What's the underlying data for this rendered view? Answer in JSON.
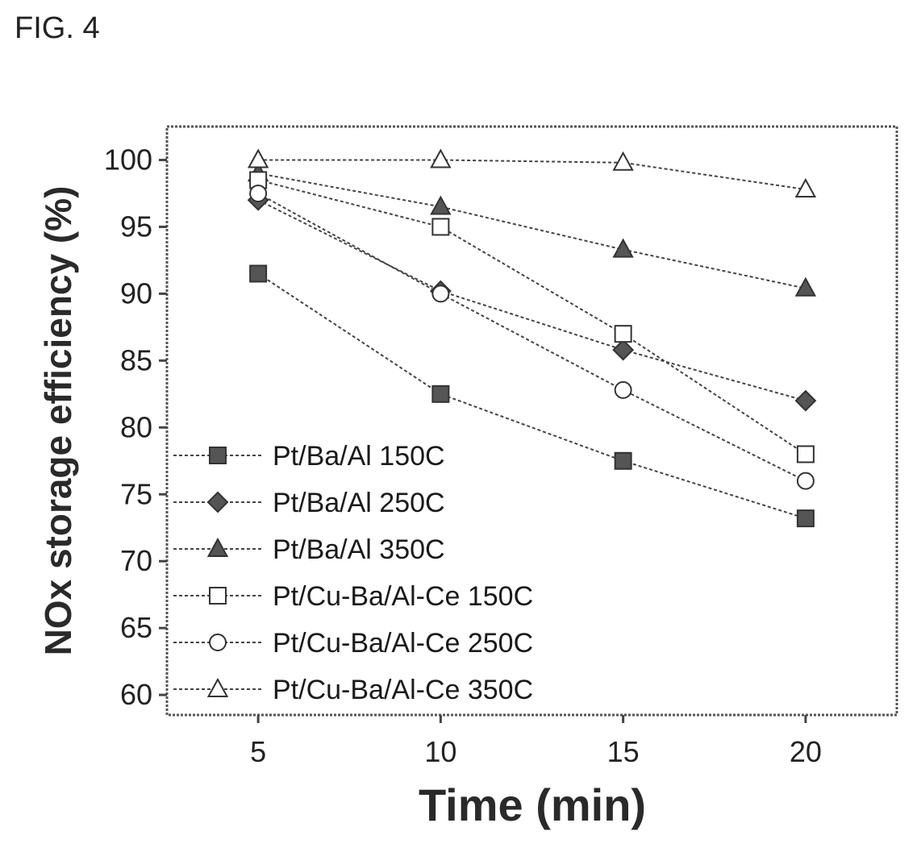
{
  "figure_label": "FIG. 4",
  "chart_data": {
    "type": "line",
    "x": [
      5,
      10,
      15,
      20
    ],
    "xlabel": "Time (min)",
    "ylabel": "NOx storage efficiency (%)",
    "xlim": [
      2.5,
      22.5
    ],
    "ylim": [
      58.5,
      102.5
    ],
    "xticks": [
      5,
      10,
      15,
      20
    ],
    "yticks": [
      60,
      65,
      70,
      75,
      80,
      85,
      90,
      95,
      100
    ],
    "grid": false,
    "legend_position": "bottom-left",
    "series": [
      {
        "name": "Pt/Ba/Al 150C",
        "marker": "square-filled",
        "values": [
          91.5,
          82.5,
          77.5,
          73.2
        ]
      },
      {
        "name": "Pt/Ba/Al 250C",
        "marker": "diamond-filled",
        "values": [
          97.0,
          90.2,
          85.8,
          82.0
        ]
      },
      {
        "name": "Pt/Ba/Al 350C",
        "marker": "triangle-filled",
        "values": [
          99.0,
          96.5,
          93.3,
          90.4
        ]
      },
      {
        "name": "Pt/Cu-Ba/Al-Ce 150C",
        "marker": "square-open",
        "values": [
          98.5,
          95.0,
          87.0,
          78.0
        ]
      },
      {
        "name": "Pt/Cu-Ba/Al-Ce 250C",
        "marker": "circle-open",
        "values": [
          97.5,
          90.0,
          82.8,
          76.0
        ]
      },
      {
        "name": "Pt/Cu-Ba/Al-Ce 350C",
        "marker": "triangle-open",
        "values": [
          100.0,
          100.0,
          99.8,
          97.8
        ]
      }
    ]
  }
}
